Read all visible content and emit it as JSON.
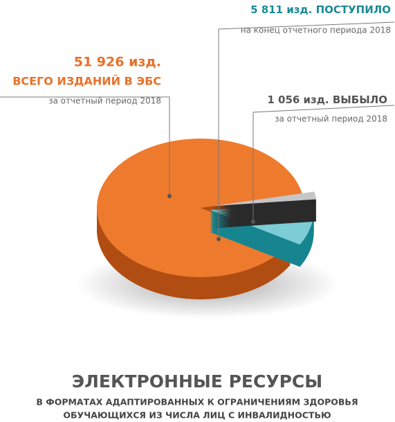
{
  "chart_data": {
    "type": "pie",
    "title": "ЭЛЕКТРОННЫЕ РЕСУРСЫ",
    "subtitle": [
      "В ФОРМАТАХ АДАПТИРОВАННЫХ К ОГРАНИЧЕНИЯМ ЗДОРОВЬЯ",
      "ОБУЧАЮЩИХСЯ ИЗ ЧИСЛА ЛИЦ С ИНВАЛИДНОСТЬЮ"
    ],
    "categories": [
      "ВСЕГО ИЗДАНИЙ В ЭБС",
      "ПОСТУПИЛО",
      "ВЫБЫЛО"
    ],
    "periods": [
      "за отчетный период 2018",
      "на конец отчетного периода 2018",
      "за отчетный период 2018"
    ],
    "values": [
      51926,
      5811,
      1056
    ],
    "value_labels": [
      "51 926 изд.",
      "5 811 изд.",
      "1 056 изд."
    ],
    "colors": [
      "#ee7a2e",
      "#7ccdd5",
      "#c6c6c6"
    ]
  }
}
